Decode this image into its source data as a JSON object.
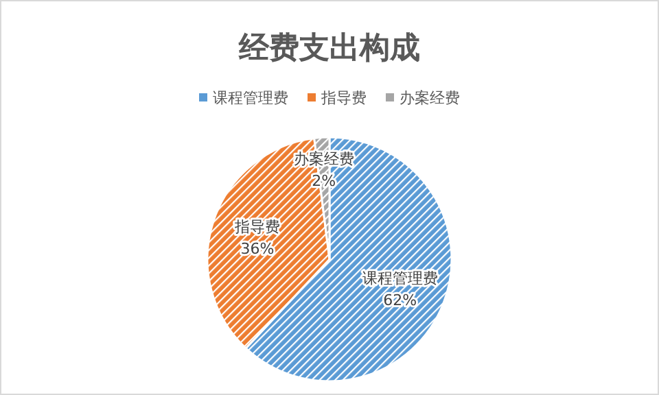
{
  "chart_data": {
    "type": "pie",
    "title": "经费支出构成",
    "categories": [
      "课程管理费",
      "指导费",
      "办案经费"
    ],
    "values": [
      62,
      36,
      2
    ],
    "value_labels": [
      "62%",
      "36%",
      "2%"
    ],
    "colors": [
      "#5b9bd5",
      "#ed7d31",
      "#a5a5a5"
    ],
    "legend": "top"
  }
}
